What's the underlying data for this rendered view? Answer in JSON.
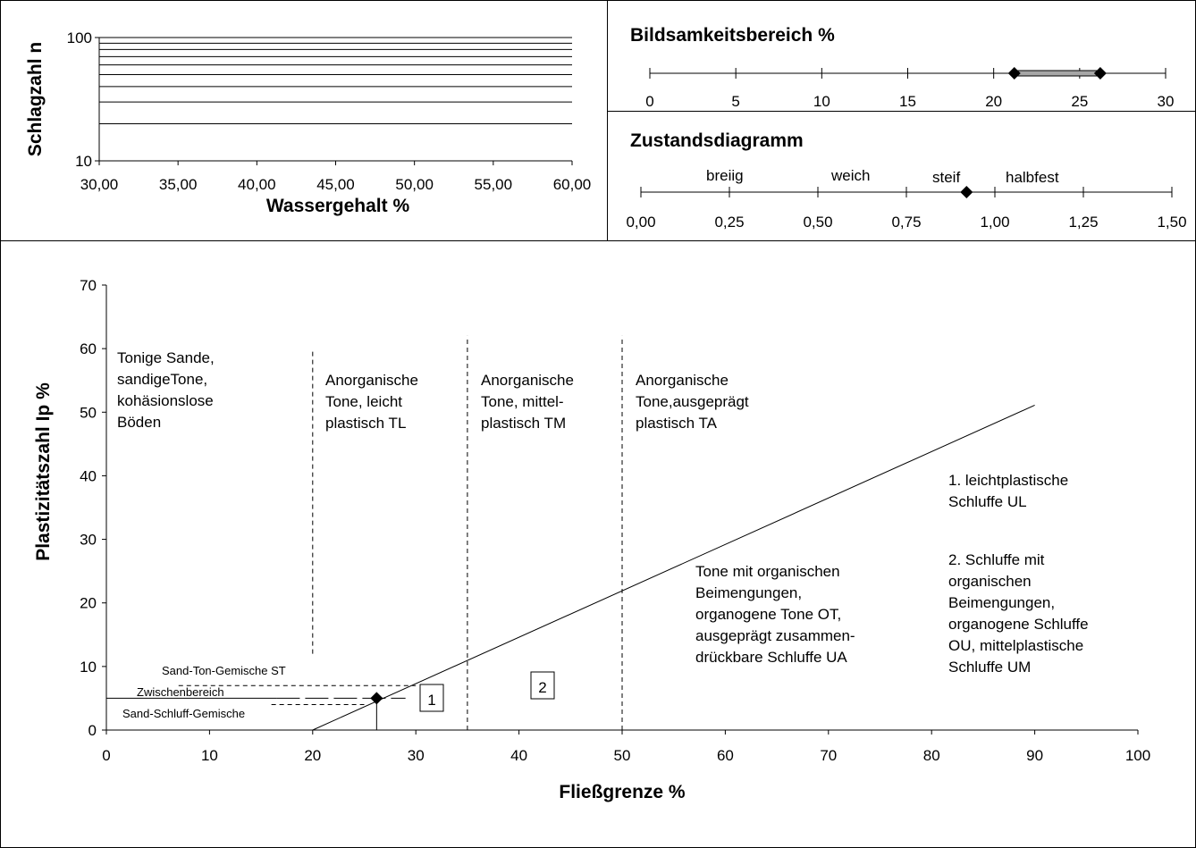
{
  "colors": {
    "ink": "#000000",
    "bar_fill": "#a6a6a6",
    "background": "#ffffff"
  },
  "chart_data": [
    {
      "id": "fliessgrenze",
      "type": "scatter",
      "xlabel": "Wassergehalt %",
      "ylabel": "Schlagzahl n",
      "x_ticks": [
        "30,00",
        "35,00",
        "40,00",
        "45,00",
        "50,00",
        "55,00",
        "60,00"
      ],
      "y_ticks": [
        "10",
        "100"
      ],
      "xlim": [
        30,
        60
      ],
      "ylim": [
        10,
        100
      ],
      "y_scale": "log",
      "grid": "horizontal",
      "series": []
    },
    {
      "id": "bildsamkeit",
      "type": "range",
      "title": "Bildsamkeitsbereich %",
      "x_ticks": [
        "0",
        "5",
        "10",
        "15",
        "20",
        "25",
        "30"
      ],
      "xlim": [
        0,
        30
      ],
      "range": [
        21.2,
        26.2
      ]
    },
    {
      "id": "zustand",
      "type": "scatter",
      "title": "Zustandsdiagramm",
      "x_ticks": [
        "0,00",
        "0,25",
        "0,50",
        "0,75",
        "1,00",
        "1,25",
        "1,50"
      ],
      "xlim": [
        0,
        1.5
      ],
      "state_labels": [
        "breiig",
        "weich",
        "steif",
        "halbfest"
      ],
      "point": 0.92
    },
    {
      "id": "plastizitaet",
      "type": "scatter",
      "xlabel": "Fließgrenze %",
      "ylabel": "Plastizitätszahl Ip %",
      "x_ticks": [
        "0",
        "10",
        "20",
        "30",
        "40",
        "50",
        "60",
        "70",
        "80",
        "90",
        "100"
      ],
      "y_ticks": [
        "0",
        "10",
        "20",
        "30",
        "40",
        "50",
        "60",
        "70"
      ],
      "xlim": [
        0,
        100
      ],
      "ylim": [
        0,
        70
      ],
      "a_line": {
        "x": [
          20,
          90
        ],
        "y": [
          0,
          51.1
        ]
      },
      "point": {
        "x": 26.2,
        "y": 5
      },
      "region_labels": {
        "tonige_sande": [
          "Tonige Sande,",
          "sandigeTone,",
          "kohäsionslose",
          "Böden"
        ],
        "tl": [
          "Anorganische",
          "Tone, leicht",
          "plastisch TL"
        ],
        "tm": [
          "Anorganische",
          "Tone, mittel-",
          "plastisch TM"
        ],
        "ta": [
          "Anorganische",
          "Tone,ausgeprägt",
          "plastisch TA"
        ],
        "ot": [
          "Tone mit organischen",
          "Beimengungen,",
          "organogene Tone OT,",
          "ausgeprägt zusammen-",
          "drückbare Schluffe UA"
        ],
        "ul": [
          "1.  leichtplastische",
          "Schluffe UL"
        ],
        "ou": [
          "2.  Schluffe mit",
          "organischen",
          "Beimengungen,",
          "organogene Schluffe",
          "OU, mittelplastische",
          "Schluffe UM"
        ],
        "st": "Sand-Ton-Gemische ST",
        "zw": "Zwischenbereich",
        "su": "Sand-Schluff-Gemische",
        "box1": "1",
        "box2": "2"
      }
    }
  ]
}
